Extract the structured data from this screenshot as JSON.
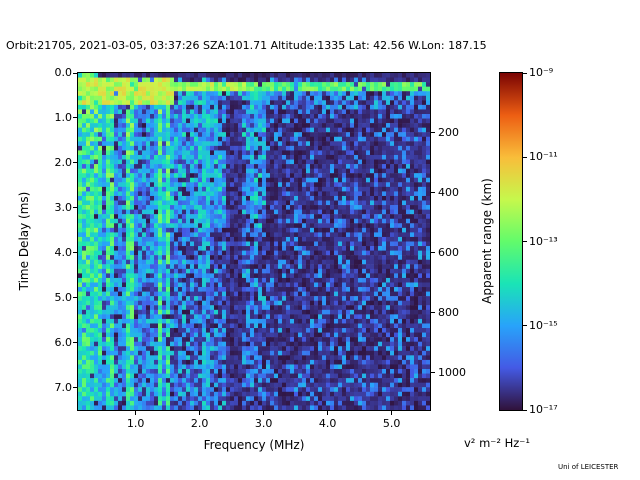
{
  "figure": {
    "title": "Orbit:21705, 2021-03-05, 03:37:26 SZA:101.71 Altitude:1335 Lat: 42.56 W.Lon: 187.15",
    "credit": "Uni of LEICESTER"
  },
  "chart_data": {
    "type": "heatmap",
    "description": "Radar sounder ionogram spectrogram: received spectral density shown as color versus sounding frequency (x) and echo time delay (y), with apparent range on the right axis and a logarithmic colorbar.",
    "x_axis": {
      "label": "Frequency (MHz)",
      "min": 0.1,
      "max": 5.6,
      "ticks": [
        {
          "v": 1.0,
          "label": "1.0"
        },
        {
          "v": 2.0,
          "label": "2.0"
        },
        {
          "v": 3.0,
          "label": "3.0"
        },
        {
          "v": 4.0,
          "label": "4.0"
        },
        {
          "v": 5.0,
          "label": "5.0"
        }
      ]
    },
    "y_axis_left": {
      "label": "Time Delay (ms)",
      "min": 0.0,
      "max": 7.5,
      "ticks": [
        {
          "v": 0,
          "label": "0.0"
        },
        {
          "v": 1,
          "label": "1.0"
        },
        {
          "v": 2,
          "label": "2.0"
        },
        {
          "v": 3,
          "label": "3.0"
        },
        {
          "v": 4,
          "label": "4.0"
        },
        {
          "v": 5,
          "label": "5.0"
        },
        {
          "v": 6,
          "label": "6.0"
        },
        {
          "v": 7,
          "label": "7.0"
        }
      ]
    },
    "y_axis_right": {
      "label": "Apparent range (km)",
      "km_per_ms": 150,
      "ticks": [
        {
          "v": 200,
          "label": "200"
        },
        {
          "v": 400,
          "label": "400"
        },
        {
          "v": 600,
          "label": "600"
        },
        {
          "v": 800,
          "label": "800"
        },
        {
          "v": 1000,
          "label": "1000"
        }
      ]
    },
    "colorbar": {
      "unit": "v² m⁻² Hz⁻¹",
      "scale": "log10",
      "min_exp": -17,
      "max_exp": -9,
      "ticks": [
        {
          "exp": -9,
          "label": "10⁻⁹"
        },
        {
          "exp": -11,
          "label": "10⁻¹¹"
        },
        {
          "exp": -13,
          "label": "10⁻¹³"
        },
        {
          "exp": -15,
          "label": "10⁻¹⁵"
        },
        {
          "exp": -17,
          "label": "10⁻¹⁷"
        }
      ]
    },
    "features": [
      "Bright green-cyan vertical stripes spanning the full delay range below ~1.5 MHz",
      "Very bright green patch in the top-left corner (low frequency, short delay)",
      "Strong horizontal echo band near 0.2-0.4 ms delay spanning all frequencies",
      "Diffuse blue echo cloud between ~1.3 and 3.0 MHz down to ~3.4 ms delay",
      "Faint blue vertical stripe near 2.1 MHz and a dark vertical gap near 2.5 MHz",
      "Sparse dark-blue noise speckle over a near-black background above 3 MHz"
    ],
    "colormap": {
      "name": "turbo-like",
      "stops": [
        {
          "t": 0.0,
          "color": "#30123b"
        },
        {
          "t": 0.125,
          "color": "#445ae5"
        },
        {
          "t": 0.25,
          "color": "#28a3fa"
        },
        {
          "t": 0.375,
          "color": "#1ae4b6"
        },
        {
          "t": 0.5,
          "color": "#62fb6b"
        },
        {
          "t": 0.625,
          "color": "#c6f84c"
        },
        {
          "t": 0.75,
          "color": "#f9bd3a"
        },
        {
          "t": 0.875,
          "color": "#ed5e13"
        },
        {
          "t": 1.0,
          "color": "#7a0403"
        }
      ]
    },
    "render_model": {
      "seed": 20210305,
      "nx": 88,
      "ny": 74,
      "f_range": [
        0.1,
        5.6
      ],
      "d_range": [
        0.0,
        7.5
      ],
      "v_range": [
        -17,
        -9
      ],
      "regions": [
        {
          "kind": "fill",
          "f": [
            0.1,
            5.6
          ],
          "d": [
            0,
            7.5
          ],
          "v": [
            -16.95,
            -16.35
          ]
        },
        {
          "kind": "speckle",
          "f": [
            0.1,
            5.6
          ],
          "d": [
            0,
            7.5
          ],
          "prob": 0.3,
          "v": [
            -16.6,
            -14.7
          ]
        },
        {
          "kind": "speckle",
          "f": [
            0.1,
            3.05
          ],
          "d": [
            0.3,
            7.5
          ],
          "prob": 0.4,
          "v": [
            -16.4,
            -14.3
          ]
        },
        {
          "kind": "speckle",
          "f": [
            1.3,
            3.05
          ],
          "d": [
            0.35,
            3.4
          ],
          "prob": 0.6,
          "v": [
            -16.1,
            -13.8
          ]
        },
        {
          "kind": "stripes",
          "f": [
            0.1,
            1.52
          ],
          "d": [
            0,
            7.5
          ],
          "prob": 0.55,
          "fade": 0.18,
          "v": [
            -14.9,
            -12.2
          ],
          "dim_v": [
            -16.3,
            -14.0
          ]
        },
        {
          "kind": "speckle",
          "f": [
            2.03,
            2.15
          ],
          "d": [
            0,
            7.5
          ],
          "prob": 0.8,
          "v": [
            -15.7,
            -14.1
          ]
        },
        {
          "kind": "speckle",
          "f": [
            2.5,
            5.6
          ],
          "d": [
            0.45,
            0.8
          ],
          "prob": 0.5,
          "v": [
            -15.8,
            -14.4
          ]
        },
        {
          "kind": "gap",
          "f": [
            2.42,
            2.64
          ],
          "d": [
            0.5,
            7.5
          ],
          "v": [
            -16.9,
            -16.1
          ]
        },
        {
          "kind": "speckle",
          "f": [
            0.1,
            5.6
          ],
          "d": [
            0.2,
            0.44
          ],
          "prob": 0.95,
          "v": [
            -13.9,
            -12.4
          ]
        },
        {
          "kind": "speckle",
          "f": [
            0.1,
            2.72
          ],
          "d": [
            0.2,
            0.44
          ],
          "prob": 0.9,
          "v": [
            -13.1,
            -11.7
          ]
        },
        {
          "kind": "speckle",
          "f": [
            0.1,
            1.6
          ],
          "d": [
            0.08,
            0.75
          ],
          "prob": 0.9,
          "v": [
            -12.8,
            -11.3
          ]
        },
        {
          "kind": "fill",
          "f": [
            0.4,
            5.6
          ],
          "d": [
            0,
            0.1
          ],
          "v": [
            -16.9,
            -16.5
          ]
        }
      ]
    }
  }
}
